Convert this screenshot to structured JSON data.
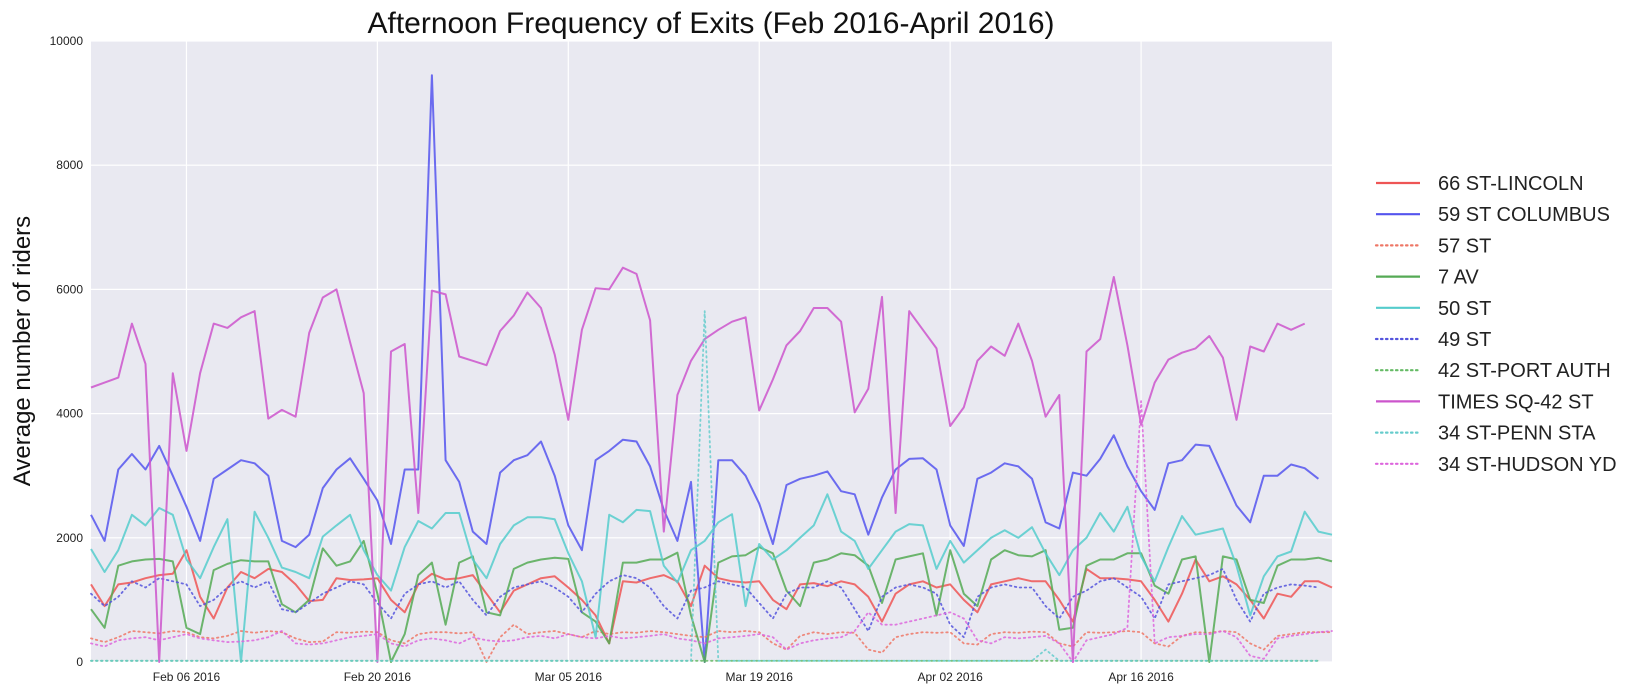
{
  "chart_data": {
    "type": "line",
    "title": "Afternoon Frequency of Exits (Feb 2016-April 2016)",
    "xlabel": "",
    "ylabel": "Average number of riders",
    "ylim": [
      0,
      10000
    ],
    "xlim": [
      "2016-01-30",
      "2016-04-30"
    ],
    "x_ticks": [
      "Feb 06 2016",
      "Feb 20 2016",
      "Mar 05 2016",
      "Mar 19 2016",
      "Apr 02 2016",
      "Apr 16 2016"
    ],
    "x_tick_dates": [
      "2016-02-06",
      "2016-02-20",
      "2016-03-05",
      "2016-03-19",
      "2016-04-02",
      "2016-04-16"
    ],
    "y_ticks": [
      "0",
      "2000",
      "4000",
      "6000",
      "8000",
      "10000"
    ],
    "grid": true,
    "legend": "right",
    "x_start": "2016-01-30",
    "x_step_days": 1,
    "series": [
      {
        "name": "66 ST-LINCOLN",
        "color": "#ee5555",
        "style": "solid",
        "values": [
          1250,
          900,
          1250,
          1280,
          1350,
          1400,
          1420,
          1800,
          1050,
          700,
          1200,
          1450,
          1350,
          1500,
          1450,
          1250,
          980,
          1000,
          1350,
          1320,
          1330,
          1350,
          1000,
          800,
          1250,
          1420,
          1330,
          1350,
          1400,
          1100,
          800,
          1150,
          1250,
          1350,
          1380,
          1200,
          1000,
          750,
          300,
          1300,
          1280,
          1350,
          1400,
          1300,
          900,
          1550,
          1350,
          1300,
          1280,
          1300,
          1000,
          850,
          1250,
          1270,
          1220,
          1300,
          1250,
          1050,
          650,
          1100,
          1250,
          1300,
          1200,
          1250,
          1000,
          800,
          1250,
          1300,
          1350,
          1300,
          1300,
          1000,
          650,
          1500,
          1350,
          1350,
          1330,
          1300,
          1000,
          650,
          1100,
          1650,
          1300,
          1380,
          1250,
          1000,
          700,
          1100,
          1050,
          1300,
          1300,
          1200
        ]
      },
      {
        "name": "59 ST COLUMBUS",
        "color": "#5555ee",
        "style": "solid",
        "values": [
          2370,
          1950,
          3100,
          3350,
          3100,
          3480,
          3000,
          2500,
          1950,
          2950,
          3100,
          3250,
          3200,
          3000,
          1950,
          1850,
          2050,
          2800,
          3100,
          3280,
          2950,
          2600,
          1900,
          3100,
          3100,
          9450,
          3250,
          2900,
          2100,
          1900,
          3050,
          3250,
          3330,
          3550,
          3000,
          2200,
          1800,
          3250,
          3400,
          3580,
          3550,
          3150,
          2450,
          1950,
          2900,
          0,
          3250,
          3250,
          3000,
          2550,
          1900,
          2850,
          2950,
          3000,
          3070,
          2750,
          2700,
          2050,
          2650,
          3100,
          3270,
          3280,
          3100,
          2200,
          1870,
          2950,
          3050,
          3200,
          3150,
          2950,
          2250,
          2150,
          3050,
          3000,
          3270,
          3650,
          3150,
          2750,
          2450,
          3200,
          3250,
          3500,
          3480,
          3000,
          2520,
          2250,
          3000,
          3000,
          3180,
          3120,
          2950
        ]
      },
      {
        "name": "57 ST",
        "color": "#ee7766",
        "style": "dotted",
        "values": [
          380,
          320,
          400,
          500,
          480,
          460,
          500,
          480,
          400,
          380,
          420,
          500,
          470,
          500,
          480,
          380,
          320,
          330,
          480,
          470,
          490,
          480,
          350,
          300,
          450,
          480,
          480,
          460,
          480,
          0,
          400,
          600,
          450,
          480,
          500,
          450,
          400,
          500,
          450,
          480,
          470,
          500,
          480,
          450,
          420,
          400,
          500,
          480,
          500,
          480,
          300,
          200,
          420,
          480,
          450,
          480,
          470,
          200,
          150,
          400,
          450,
          480,
          470,
          480,
          300,
          280,
          450,
          480,
          470,
          490,
          480,
          300,
          250,
          480,
          470,
          480,
          500,
          480,
          300,
          250,
          420,
          480,
          470,
          500,
          480,
          300,
          200,
          420,
          450,
          480,
          480,
          480
        ]
      },
      {
        "name": "7 AV",
        "color": "#55aa55",
        "style": "solid",
        "values": [
          850,
          550,
          1550,
          1620,
          1650,
          1660,
          1620,
          550,
          450,
          1480,
          1580,
          1640,
          1620,
          1620,
          930,
          800,
          1000,
          1830,
          1550,
          1620,
          1950,
          1100,
          0,
          450,
          1400,
          1600,
          600,
          1600,
          1700,
          800,
          750,
          1500,
          1600,
          1650,
          1680,
          1660,
          800,
          650,
          300,
          1600,
          1600,
          1650,
          1650,
          1760,
          750,
          0,
          1600,
          1700,
          1720,
          1850,
          1750,
          1150,
          900,
          1600,
          1650,
          1750,
          1720,
          1550,
          950,
          1650,
          1700,
          1750,
          750,
          1800,
          1100,
          900,
          1650,
          1800,
          1720,
          1700,
          1800,
          520,
          550,
          1550,
          1650,
          1650,
          1750,
          1750,
          1230,
          1100,
          1650,
          1700,
          0,
          1700,
          1650,
          1000,
          950,
          1550,
          1650,
          1650,
          1680,
          1620
        ]
      },
      {
        "name": "50 ST",
        "color": "#55cccc",
        "style": "solid",
        "values": [
          1820,
          1450,
          1800,
          2370,
          2200,
          2480,
          2370,
          1650,
          1350,
          1850,
          2300,
          0,
          2420,
          2000,
          1520,
          1450,
          1350,
          2020,
          2200,
          2370,
          1800,
          1400,
          1150,
          1850,
          2270,
          2150,
          2400,
          2400,
          1650,
          1350,
          1900,
          2200,
          2330,
          2330,
          2300,
          1750,
          1300,
          400,
          2370,
          2250,
          2450,
          2430,
          1550,
          1280,
          1800,
          1950,
          2250,
          2380,
          900,
          1900,
          1650,
          1800,
          2000,
          2200,
          2700,
          2100,
          1950,
          1500,
          1800,
          2100,
          2220,
          2200,
          1500,
          1950,
          1600,
          1800,
          2000,
          2120,
          2000,
          2170,
          1750,
          1400,
          1800,
          2000,
          2400,
          2100,
          2500,
          1700,
          1300,
          1850,
          2350,
          2050,
          2100,
          2150,
          1550,
          750,
          1380,
          1700,
          1780,
          2420,
          2100,
          2050
        ]
      },
      {
        "name": "49 ST",
        "color": "#5555dd",
        "style": "dotted",
        "values": [
          1100,
          900,
          1050,
          1300,
          1200,
          1350,
          1300,
          1250,
          900,
          1000,
          1200,
          1300,
          1200,
          1300,
          850,
          800,
          950,
          1100,
          1200,
          1300,
          1250,
          950,
          700,
          1100,
          1250,
          1300,
          1200,
          1300,
          1000,
          750,
          1050,
          1200,
          1250,
          1300,
          1200,
          1050,
          800,
          1100,
          1300,
          1400,
          1350,
          1200,
          900,
          700,
          1150,
          1200,
          1300,
          1250,
          1200,
          950,
          700,
          1100,
          1200,
          1200,
          1300,
          1200,
          850,
          500,
          1050,
          1200,
          1250,
          1200,
          1100,
          600,
          400,
          1050,
          1200,
          1250,
          1200,
          1200,
          900,
          700,
          1050,
          1150,
          1300,
          1350,
          1200,
          1050,
          700,
          1250,
          1300,
          1350,
          1400,
          1500,
          1000,
          650,
          1100,
          1200,
          1250,
          1230,
          1200
        ]
      },
      {
        "name": "42 ST-PORT AUTH",
        "color": "#66bb66",
        "style": "dotted",
        "values": [
          20,
          20,
          20,
          20,
          20,
          20,
          20,
          20,
          20,
          20,
          20,
          20,
          20,
          20,
          20,
          20,
          20,
          20,
          20,
          20,
          20,
          20,
          20,
          20,
          20,
          20,
          20,
          20,
          20,
          20,
          20,
          20,
          20,
          20,
          20,
          20,
          20,
          20,
          20,
          20,
          20,
          20,
          20,
          20,
          20,
          20,
          20,
          20,
          20,
          20,
          20,
          20,
          20,
          20,
          20,
          20,
          20,
          20,
          20,
          20,
          20,
          20,
          20,
          20,
          20,
          20,
          20,
          20,
          20,
          20,
          20,
          20,
          20,
          20,
          20,
          20,
          20,
          20,
          20,
          20,
          20,
          20,
          20,
          20,
          20,
          20,
          20,
          20,
          20,
          20,
          20
        ]
      },
      {
        "name": "TIMES SQ-42 ST",
        "color": "#cc55cc",
        "style": "solid",
        "values": [
          4420,
          4500,
          4580,
          5450,
          4800,
          0,
          4650,
          3400,
          4650,
          5450,
          5380,
          5550,
          5650,
          3920,
          4060,
          3950,
          5300,
          5870,
          6000,
          5150,
          4330,
          0,
          5000,
          5120,
          2400,
          5980,
          5920,
          4920,
          4850,
          4780,
          5330,
          5580,
          5950,
          5700,
          4950,
          3900,
          5350,
          6020,
          6000,
          6350,
          6250,
          5500,
          2100,
          4300,
          4850,
          5200,
          5350,
          5480,
          5550,
          4050,
          4550,
          5100,
          5330,
          5700,
          5700,
          5480,
          4020,
          4400,
          5880,
          2400,
          5650,
          5350,
          5050,
          3800,
          4100,
          4850,
          5080,
          4930,
          5450,
          4850,
          3950,
          4300,
          0,
          5000,
          5200,
          6200,
          5100,
          3820,
          4500,
          4870,
          4980,
          5050,
          5250,
          4900,
          3900,
          5080,
          5000,
          5450,
          5350,
          5450
        ]
      },
      {
        "name": "34 ST-PENN STA",
        "color": "#66cccc",
        "style": "dotted",
        "values": [
          20,
          20,
          20,
          20,
          20,
          20,
          20,
          20,
          20,
          20,
          20,
          20,
          20,
          20,
          20,
          20,
          20,
          20,
          20,
          20,
          20,
          20,
          20,
          20,
          20,
          20,
          20,
          20,
          20,
          20,
          20,
          20,
          20,
          20,
          20,
          20,
          20,
          20,
          20,
          20,
          20,
          20,
          20,
          20,
          20,
          5650,
          20,
          20,
          20,
          20,
          20,
          20,
          20,
          20,
          20,
          20,
          20,
          20,
          20,
          20,
          20,
          20,
          20,
          20,
          20,
          20,
          20,
          20,
          20,
          20,
          200,
          20,
          20,
          20,
          20,
          20,
          20,
          20,
          20,
          20,
          20,
          20,
          20,
          20,
          20,
          20,
          20,
          20,
          20,
          20,
          20
        ]
      },
      {
        "name": "34 ST-HUDSON YD",
        "color": "#dd66dd",
        "style": "dotted",
        "values": [
          300,
          250,
          350,
          380,
          400,
          350,
          400,
          450,
          380,
          350,
          320,
          330,
          350,
          400,
          500,
          300,
          280,
          300,
          350,
          400,
          420,
          450,
          300,
          250,
          350,
          380,
          350,
          300,
          400,
          350,
          330,
          350,
          400,
          420,
          380,
          450,
          400,
          380,
          420,
          380,
          400,
          420,
          450,
          380,
          350,
          300,
          380,
          400,
          420,
          450,
          400,
          200,
          300,
          350,
          380,
          400,
          500,
          800,
          600,
          600,
          650,
          700,
          750,
          800,
          700,
          350,
          300,
          400,
          380,
          400,
          420,
          300,
          0,
          350,
          400,
          450,
          550,
          4200,
          300,
          400,
          420,
          450,
          450,
          500,
          400,
          100,
          50,
          380,
          420,
          450,
          480,
          500
        ]
      }
    ]
  }
}
